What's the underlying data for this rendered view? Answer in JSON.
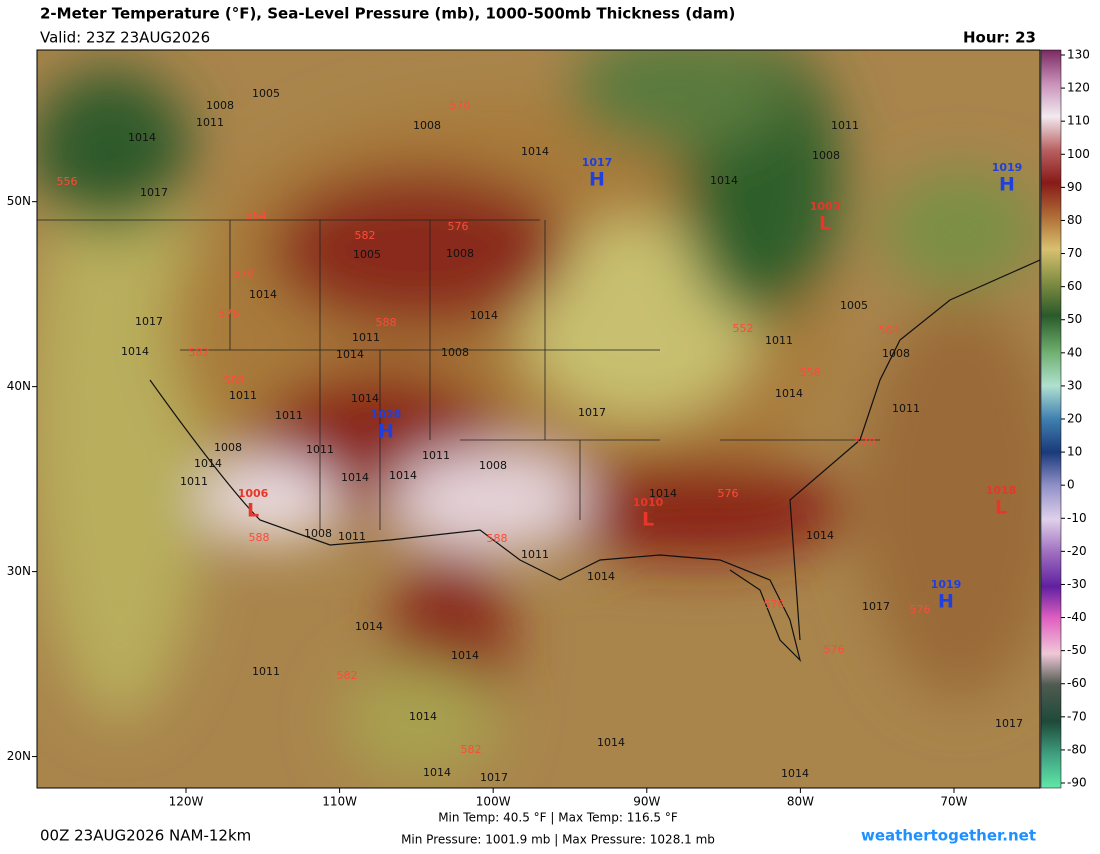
{
  "header": {
    "title": "2-Meter Temperature (°F), Sea-Level Pressure (mb), 1000-500mb Thickness (dam)",
    "valid": "Valid: 23Z 23AUG2026",
    "hour": "Hour: 23"
  },
  "colorbar": {
    "range": [
      -90,
      130
    ],
    "ticks": [
      130,
      120,
      110,
      100,
      90,
      80,
      70,
      60,
      50,
      40,
      30,
      20,
      10,
      0,
      -10,
      -20,
      -30,
      -40,
      -50,
      -60,
      -70,
      -80,
      -90
    ]
  },
  "map": {
    "lonlim": [
      -129.7,
      -64.4
    ],
    "latlim": [
      58.2,
      18.3
    ],
    "lon_ticks": [
      {
        "value": -120,
        "label": "120W"
      },
      {
        "value": -110,
        "label": "110W"
      },
      {
        "value": -100,
        "label": "100W"
      },
      {
        "value": -90,
        "label": "90W"
      },
      {
        "value": -80,
        "label": "80W"
      },
      {
        "value": -70,
        "label": "70W"
      }
    ],
    "lat_ticks": [
      {
        "value": 50,
        "label": "50N"
      },
      {
        "value": 40,
        "label": "40N"
      },
      {
        "value": 30,
        "label": "30N"
      },
      {
        "value": 20,
        "label": "20N"
      }
    ],
    "centers": [
      {
        "letter": "H",
        "value": "1017"
      },
      {
        "letter": "H",
        "value": "1019"
      },
      {
        "letter": "L",
        "value": "1003"
      },
      {
        "letter": "H",
        "value": "1028"
      },
      {
        "letter": "L",
        "value": "1010"
      },
      {
        "letter": "L",
        "value": "1006"
      },
      {
        "letter": "L",
        "value": "1018"
      },
      {
        "letter": "H",
        "value": "1019"
      }
    ],
    "isobar_labels": [
      "1005",
      "1008",
      "1011",
      "1014",
      "1017",
      "1008",
      "1014",
      "1014",
      "1011",
      "1008",
      "1005",
      "1008",
      "1014",
      "1017",
      "1014",
      "1014",
      "1011",
      "1008",
      "1014",
      "1011",
      "1011",
      "1014",
      "1017",
      "1011",
      "1005",
      "1008",
      "1014",
      "1011",
      "1008",
      "1014",
      "1011",
      "1011",
      "1014",
      "1014",
      "1011",
      "1008",
      "1014",
      "1008",
      "1011",
      "1011",
      "1014",
      "1014",
      "1017",
      "1014",
      "1014",
      "1011",
      "1014",
      "1014",
      "1014",
      "1017",
      "1014",
      "1017"
    ],
    "thickness_labels": [
      "570",
      "556",
      "564",
      "582",
      "576",
      "570",
      "576",
      "588",
      "582",
      "588",
      "552",
      "558",
      "564",
      "570",
      "576",
      "588",
      "588",
      "576",
      "576",
      "582",
      "582",
      "576"
    ]
  },
  "footer": {
    "run": "00Z 23AUG2026 NAM-12km",
    "temp": "Min Temp:  40.5 °F | Max Temp: 116.5 °F",
    "pressure": "Min Pressure: 1001.9 mb | Max Pressure: 1028.1 mb",
    "source": "weathertogether.net"
  }
}
